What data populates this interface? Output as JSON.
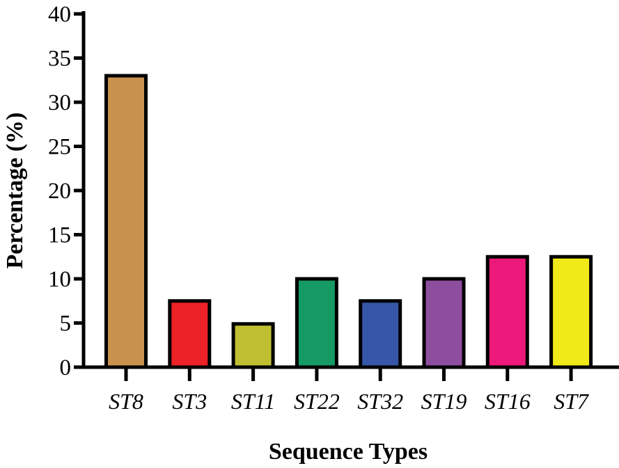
{
  "chart_data": {
    "type": "bar",
    "title": "",
    "xlabel": "Sequence Types",
    "ylabel": "Percentage (%)",
    "ylim": [
      0,
      40
    ],
    "yticks": [
      0,
      5,
      10,
      15,
      20,
      25,
      30,
      35,
      40
    ],
    "categories": [
      "ST8",
      "ST3",
      "ST11",
      "ST22",
      "ST32",
      "ST19",
      "ST16",
      "ST7"
    ],
    "values": [
      33.0,
      7.5,
      4.9,
      10.0,
      7.5,
      10.0,
      12.5,
      12.5
    ],
    "colors": [
      "#C8924E",
      "#EC2227",
      "#C0BF31",
      "#159A64",
      "#3657A7",
      "#8E4E9F",
      "#EC187A",
      "#F1EA19"
    ],
    "grid": false,
    "legend": "none"
  }
}
